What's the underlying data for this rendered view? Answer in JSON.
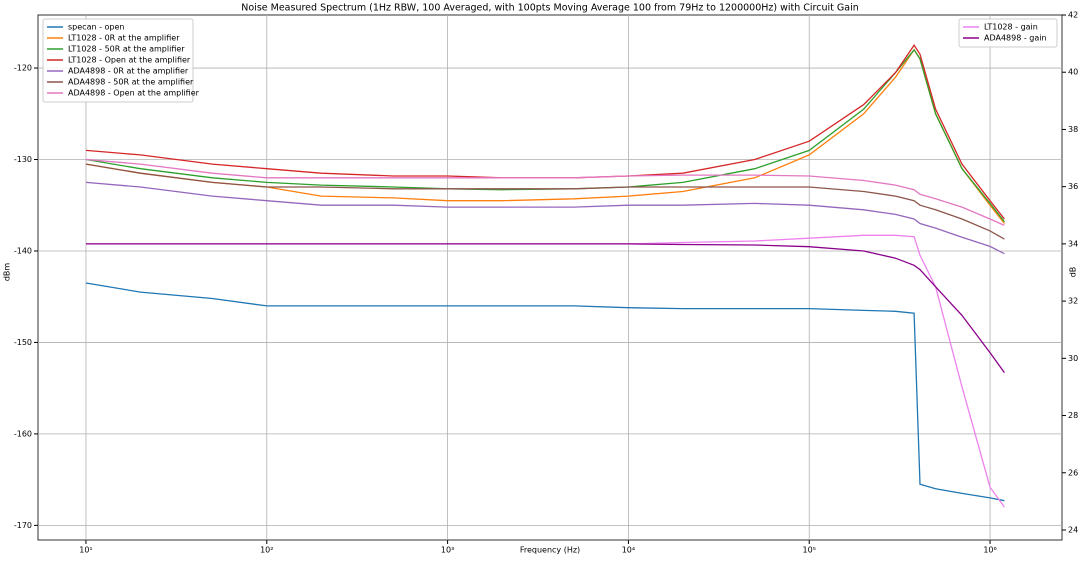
{
  "chart_data": {
    "type": "line",
    "title": "Noise Measured Spectrum (1Hz RBW, 100 Averaged, with 100pts Moving Average 100 from 79Hz to 1200000Hz) with Circuit Gain",
    "x_label": "Frequency (Hz)",
    "y_label": "dBm",
    "y2_label": "dB",
    "x_scale": "log",
    "grid": true,
    "legend": "upper left",
    "legend2": "upper right",
    "xlim": [
      5.43,
      2500000
    ],
    "xticks": [
      {
        "value": 10,
        "label": "10¹"
      },
      {
        "value": 100,
        "label": "10²"
      },
      {
        "value": 1000,
        "label": "10³"
      },
      {
        "value": 10000,
        "label": "10⁴"
      },
      {
        "value": 100000,
        "label": "10⁵"
      },
      {
        "value": 1000000,
        "label": "10⁶"
      }
    ],
    "ylim": [
      -171.6,
      -114.2
    ],
    "yticks": [
      -170,
      -160,
      -150,
      -140,
      -130,
      -120
    ],
    "y2lim": [
      23.65,
      42
    ],
    "y2ticks": [
      24,
      26,
      28,
      30,
      32,
      34,
      36,
      38,
      40,
      42
    ],
    "x": [
      10,
      20,
      50,
      100,
      200,
      500,
      1000,
      2000,
      5000,
      10000,
      20000,
      50000,
      100000,
      200000,
      300000,
      380000,
      410000,
      500000,
      700000,
      1000000,
      1200000
    ],
    "series": [
      {
        "name": "specan - open",
        "color": "#1f77b4",
        "values": [
          -143.5,
          -144.5,
          -145.2,
          -146,
          -146,
          -146,
          -146,
          -146,
          -146,
          -146.2,
          -146.3,
          -146.3,
          -146.3,
          -146.5,
          -146.6,
          -146.8,
          -165.5,
          -166,
          -166.5,
          -167,
          -167.3
        ]
      },
      {
        "name": "LT1028 - 0R at the amplifier",
        "color": "#ff7f0e",
        "values": [
          -130.5,
          -131.5,
          -132.5,
          -133,
          -134,
          -134.2,
          -134.5,
          -134.5,
          -134.3,
          -134,
          -133.5,
          -132,
          -129.5,
          -125,
          -121,
          -118,
          -119,
          -125,
          -131,
          -135,
          -137
        ]
      },
      {
        "name": "LT1028 - 50R at the amplifier",
        "color": "#2ca02c",
        "values": [
          -130,
          -131,
          -132,
          -132.5,
          -132.8,
          -133,
          -133.2,
          -133.3,
          -133.2,
          -133,
          -132.5,
          -131,
          -129,
          -124.5,
          -120.5,
          -118,
          -119,
          -125,
          -131,
          -134.8,
          -136.8
        ]
      },
      {
        "name": "LT1028 - Open at the amplifier",
        "color": "#d62728",
        "values": [
          -129,
          -129.5,
          -130.5,
          -131,
          -131.5,
          -131.8,
          -131.8,
          -132,
          -132,
          -131.8,
          -131.5,
          -130,
          -128,
          -124,
          -120.5,
          -117.5,
          -118.5,
          -124.5,
          -130.5,
          -134.5,
          -136.5
        ]
      },
      {
        "name": "ADA4898 - 0R at the amplifier",
        "color": "#9467bd",
        "values": [
          -132.5,
          -133,
          -134,
          -134.5,
          -135,
          -135,
          -135.2,
          -135.2,
          -135.2,
          -135,
          -135,
          -134.8,
          -135,
          -135.5,
          -136,
          -136.5,
          -137,
          -137.5,
          -138.5,
          -139.5,
          -140.3
        ]
      },
      {
        "name": "ADA4898 - 50R at the amplifier",
        "color": "#8c564b",
        "values": [
          -130.5,
          -131.5,
          -132.5,
          -133,
          -133,
          -133.2,
          -133.2,
          -133.2,
          -133.2,
          -133,
          -133,
          -133,
          -133,
          -133.5,
          -134,
          -134.5,
          -135,
          -135.5,
          -136.5,
          -137.8,
          -138.7
        ]
      },
      {
        "name": "ADA4898 - Open at the amplifier",
        "color": "#e377c2",
        "values": [
          -130,
          -130.5,
          -131.5,
          -132,
          -132,
          -132,
          -132,
          -132,
          -132,
          -131.8,
          -131.7,
          -131.7,
          -131.8,
          -132.3,
          -132.8,
          -133.3,
          -133.8,
          -134.3,
          -135.2,
          -136.5,
          -137.2
        ]
      },
      {
        "name": "LT1028 - gain",
        "color": "#ee82ee",
        "axis": "y2",
        "values": [
          34,
          34,
          34,
          34,
          34,
          34,
          34,
          34,
          34,
          34,
          34.05,
          34.1,
          34.2,
          34.3,
          34.3,
          34.25,
          33.6,
          32.5,
          29,
          25.5,
          24.8
        ]
      },
      {
        "name": "ADA4898 - gain",
        "color": "#8b008b",
        "axis": "y2",
        "values": [
          34,
          34,
          34,
          34,
          34,
          34,
          34,
          34,
          34,
          34,
          33.98,
          33.96,
          33.9,
          33.75,
          33.5,
          33.25,
          33.1,
          32.5,
          31.5,
          30.2,
          29.5
        ]
      }
    ]
  }
}
